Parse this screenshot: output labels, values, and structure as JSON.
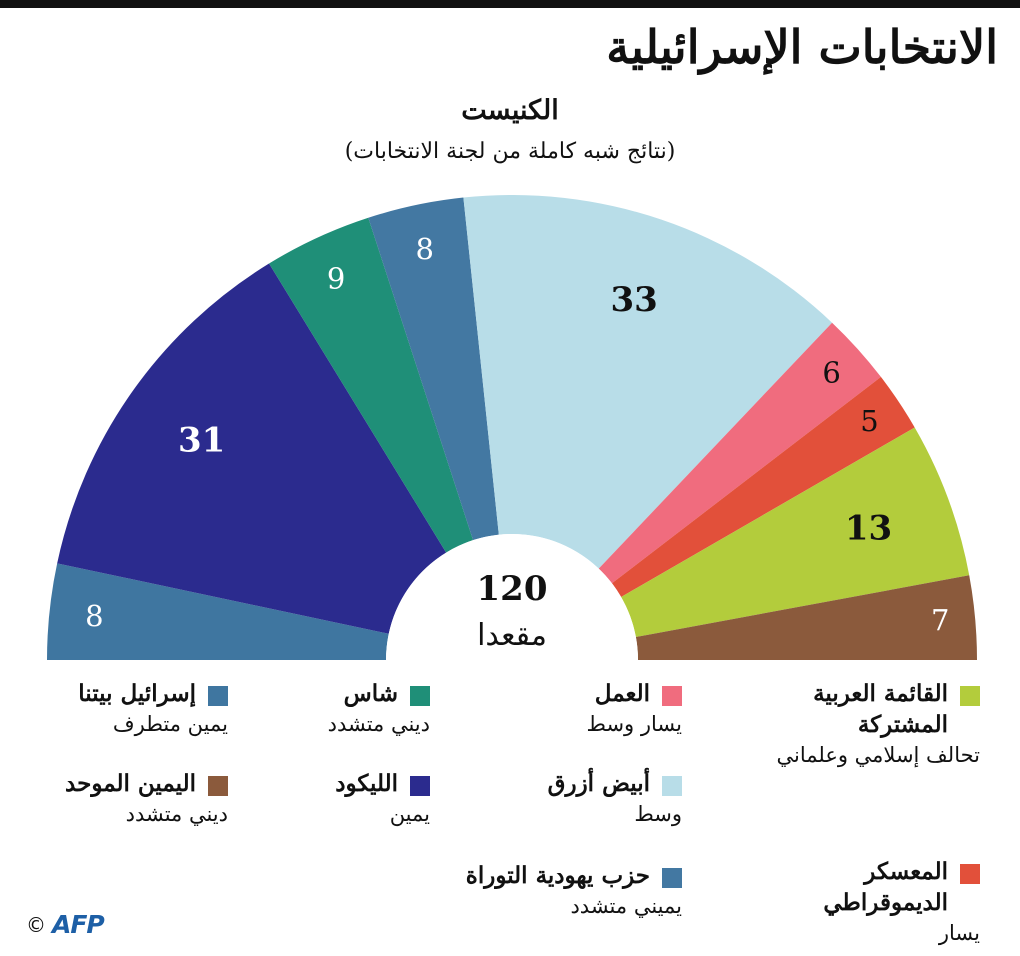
{
  "title": "الانتخابات الإسرائيلية",
  "chart_data": {
    "type": "pie",
    "variant": "hemicycle",
    "title": "الكنيست",
    "subtitle": "(نتائج شبه كاملة من لجنة الانتخابات)",
    "total": {
      "value": "120",
      "unit": "مقعدا"
    },
    "slices": [
      {
        "key": "yisrael_beiteinu",
        "value": 8,
        "color": "#3f76a0",
        "label_color": "#ffffff",
        "bold": false
      },
      {
        "key": "likud",
        "value": 31,
        "color": "#2b2b8e",
        "label_color": "#ffffff",
        "bold": true
      },
      {
        "key": "shas",
        "value": 9,
        "color": "#1f8f78",
        "label_color": "#ffffff",
        "bold": false
      },
      {
        "key": "utj",
        "value": 8,
        "color": "#4378a2",
        "label_color": "#ffffff",
        "bold": false
      },
      {
        "key": "blue_white",
        "value": 33,
        "color": "#b8dde8",
        "label_color": "#111111",
        "bold": true
      },
      {
        "key": "labor",
        "value": 6,
        "color": "#f06c7e",
        "label_color": "#111111",
        "bold": false
      },
      {
        "key": "democratic_camp",
        "value": 5,
        "color": "#e2503a",
        "label_color": "#111111",
        "bold": false
      },
      {
        "key": "joint_list",
        "value": 13,
        "color": "#b3cc3c",
        "label_color": "#111111",
        "bold": true
      },
      {
        "key": "united_right",
        "value": 7,
        "color": "#8b5a3c",
        "label_color": "#ffffff",
        "bold": false
      }
    ],
    "legend": [
      {
        "key": "joint_list",
        "name": "القائمة العربية المشتركة",
        "desc": "تحالف إسلامي وعلماني",
        "color": "#b3cc3c"
      },
      {
        "key": "democratic_camp",
        "name": "المعسكر الديموقراطي",
        "desc": "يسار",
        "color": "#e2503a"
      },
      {
        "key": "labor",
        "name": "العمل",
        "desc": "يسار وسط",
        "color": "#f06c7e"
      },
      {
        "key": "blue_white",
        "name": "أبيض أزرق",
        "desc": "وسط",
        "color": "#b8dde8"
      },
      {
        "key": "utj",
        "name": "حزب يهودية التوراة",
        "desc": "يميني متشدد",
        "color": "#4378a2"
      },
      {
        "key": "shas",
        "name": "شاس",
        "desc": "ديني متشدد",
        "color": "#1f8f78"
      },
      {
        "key": "likud",
        "name": "الليكود",
        "desc": "يمين",
        "color": "#2b2b8e"
      },
      {
        "key": "yisrael_beiteinu",
        "name": "إسرائيل بيتنا",
        "desc": "يمين متطرف",
        "color": "#3f76a0"
      },
      {
        "key": "united_right",
        "name": "اليمين الموحد",
        "desc": "ديني متشدد",
        "color": "#8b5a3c"
      }
    ]
  },
  "credit": {
    "copyright": "©",
    "logo": "AFP"
  }
}
